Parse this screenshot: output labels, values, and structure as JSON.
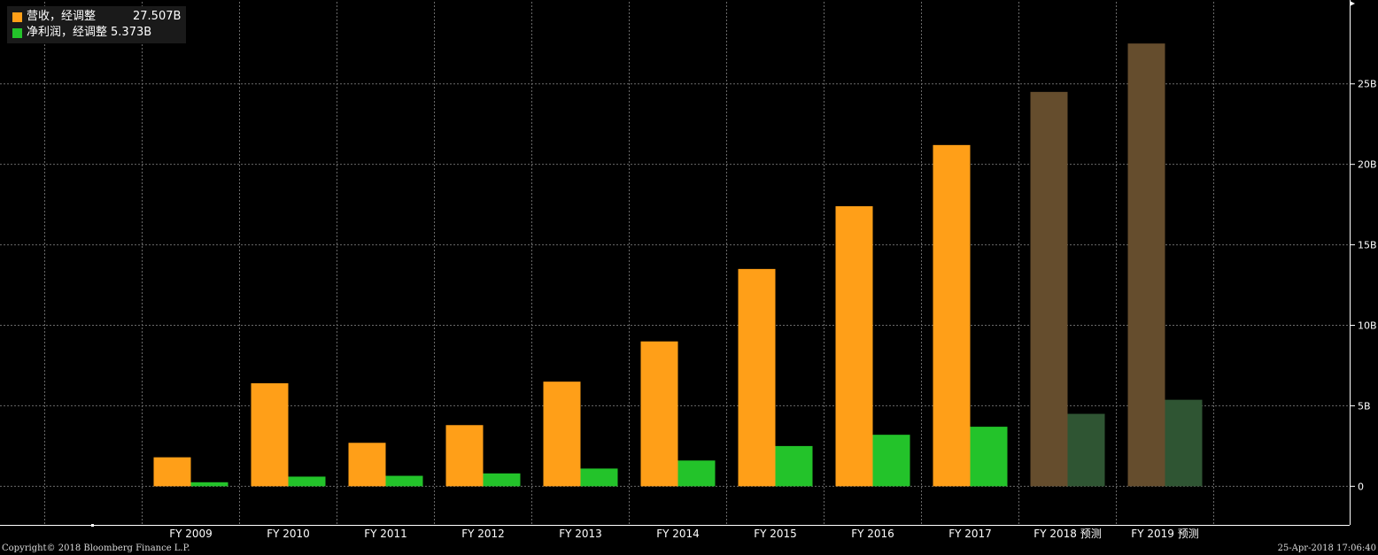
{
  "legend": [
    {
      "name": "营收，经调整",
      "value": "27.507B",
      "color": "#ff9f18"
    },
    {
      "name": "净利润，经调整",
      "value": "5.373B",
      "color": "#23c32a"
    }
  ],
  "footer": {
    "copyright": "Copyright© 2018 Bloomberg Finance L.P.",
    "timestamp": "25-Apr-2018 17:06:40"
  },
  "chart_data": {
    "type": "bar",
    "categories": [
      "FY 2009",
      "FY 2010",
      "FY 2011",
      "FY 2012",
      "FY 2013",
      "FY 2014",
      "FY 2015",
      "FY 2016",
      "FY 2017",
      "FY 2018 预测",
      "FY 2019 预测"
    ],
    "series": [
      {
        "name": "营收，经调整",
        "values": [
          1.8,
          6.4,
          2.7,
          3.8,
          6.5,
          9.0,
          13.5,
          17.4,
          21.2,
          24.5,
          27.507
        ],
        "color": "#ff9f18",
        "estimate_color": "#654d2d"
      },
      {
        "name": "净利润，经调整",
        "values": [
          0.25,
          0.6,
          0.65,
          0.8,
          1.1,
          1.6,
          2.5,
          3.2,
          3.7,
          4.5,
          5.373
        ],
        "color": "#23c32a",
        "estimate_color": "#2f5533"
      }
    ],
    "estimate_from_index": 9,
    "y_ticks": [
      0,
      5,
      10,
      15,
      20,
      25
    ],
    "y_tick_labels": [
      "0",
      "5B",
      "10B",
      "15B",
      "20B",
      "25B"
    ],
    "ylim": [
      -2.4,
      30.1
    ],
    "grid": true,
    "y_axis_position": "right",
    "legend_position": "top-left"
  }
}
